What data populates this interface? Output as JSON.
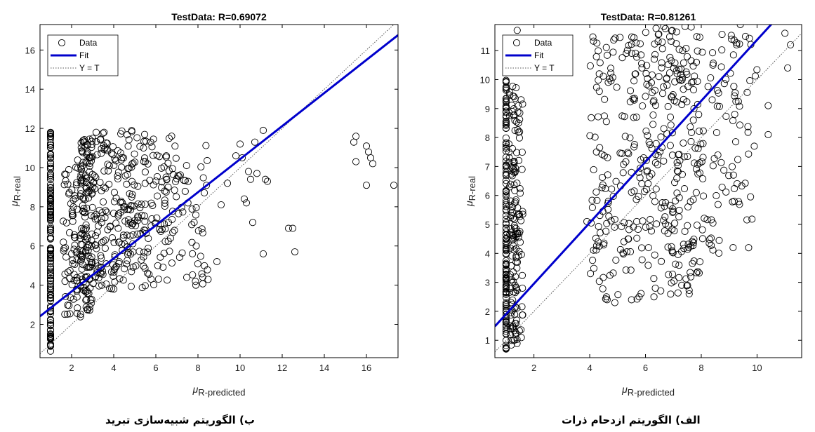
{
  "captions": {
    "left": "ب) الگوریتم شبیه‌سازی تبرید",
    "right": "الف) الگوریتم ازدحام ذرات"
  },
  "chart_data": [
    {
      "type": "scatter",
      "title": "TestData: R=0.69072",
      "xlabel_mu": "μ",
      "xlabel_sub": "R-predicted",
      "ylabel_mu": "μ",
      "ylabel_sub": "R-real",
      "xlim": [
        0.5,
        17.5
      ],
      "ylim": [
        0.3,
        17.3
      ],
      "xticks": [
        2,
        4,
        6,
        8,
        10,
        12,
        14,
        16
      ],
      "yticks": [
        2,
        4,
        6,
        8,
        10,
        12,
        14,
        16
      ],
      "legend": {
        "position": "top-left",
        "entries": [
          "Data",
          "Fit",
          "Y = T"
        ]
      },
      "fit": {
        "slope": 0.844,
        "intercept": 1.99,
        "color": "#0000cc"
      },
      "ident_line": true,
      "clusters": [
        {
          "x": [
            1.0,
            1.0
          ],
          "y": [
            0.6,
            11.8
          ],
          "n": 150
        },
        {
          "x": [
            1.6,
            2.3
          ],
          "y": [
            2.5,
            10.5
          ],
          "n": 70
        },
        {
          "x": [
            2.4,
            3.0
          ],
          "y": [
            2.3,
            11.5
          ],
          "n": 150
        },
        {
          "x": [
            3.0,
            5.5
          ],
          "y": [
            3.8,
            11.9
          ],
          "n": 220
        },
        {
          "x": [
            5.5,
            8.5
          ],
          "y": [
            4.0,
            11.9
          ],
          "n": 120
        }
      ],
      "points": [
        [
          9.1,
          8.1
        ],
        [
          9.4,
          9.2
        ],
        [
          9.8,
          10.6
        ],
        [
          10.0,
          11.2
        ],
        [
          10.1,
          10.5
        ],
        [
          10.2,
          8.4
        ],
        [
          10.3,
          8.2
        ],
        [
          10.4,
          9.8
        ],
        [
          10.5,
          9.4
        ],
        [
          10.6,
          7.2
        ],
        [
          10.7,
          11.3
        ],
        [
          10.8,
          9.7
        ],
        [
          11.1,
          11.9
        ],
        [
          11.2,
          9.4
        ],
        [
          11.3,
          9.3
        ],
        [
          11.1,
          5.6
        ],
        [
          12.3,
          6.9
        ],
        [
          12.5,
          6.9
        ],
        [
          12.6,
          5.7
        ],
        [
          15.4,
          11.3
        ],
        [
          15.5,
          10.3
        ],
        [
          15.5,
          11.6
        ],
        [
          16.0,
          11.1
        ],
        [
          16.1,
          10.8
        ],
        [
          16.2,
          10.5
        ],
        [
          16.3,
          10.2
        ],
        [
          16.0,
          9.1
        ],
        [
          17.3,
          9.1
        ],
        [
          8.9,
          5.2
        ],
        [
          7.9,
          4.0
        ]
      ]
    },
    {
      "type": "scatter",
      "title": "TestData: R=0.81261",
      "xlabel_mu": "μ",
      "xlabel_sub": "R-predicted",
      "ylabel_mu": "μ",
      "ylabel_sub": "R-real",
      "xlim": [
        0.6,
        11.6
      ],
      "ylim": [
        0.4,
        11.9
      ],
      "xticks": [
        2,
        4,
        6,
        8,
        10
      ],
      "yticks": [
        1,
        2,
        3,
        4,
        5,
        6,
        7,
        8,
        9,
        10,
        11
      ],
      "legend": {
        "position": "top-left",
        "entries": [
          "Data",
          "Fit",
          "Y = T"
        ]
      },
      "fit": {
        "slope": 1.052,
        "intercept": 0.85,
        "color": "#0000cc"
      },
      "ident_line": true,
      "clusters": [
        {
          "x": [
            1.0,
            1.0
          ],
          "y": [
            0.6,
            10.0
          ],
          "n": 140
        },
        {
          "x": [
            1.1,
            1.6
          ],
          "y": [
            0.8,
            9.8
          ],
          "n": 160
        },
        {
          "x": [
            4.0,
            6.0
          ],
          "y": [
            2.3,
            11.5
          ],
          "n": 160
        },
        {
          "x": [
            6.0,
            8.0
          ],
          "y": [
            2.5,
            11.9
          ],
          "n": 230
        },
        {
          "x": [
            8.0,
            10.0
          ],
          "y": [
            4.0,
            11.6
          ],
          "n": 90
        }
      ],
      "points": [
        [
          10.4,
          9.1
        ],
        [
          10.4,
          8.1
        ],
        [
          11.1,
          10.4
        ],
        [
          11.0,
          11.6
        ],
        [
          11.2,
          11.2
        ],
        [
          9.9,
          7.7
        ],
        [
          9.4,
          11.9
        ],
        [
          4.6,
          2.5
        ],
        [
          4.9,
          2.3
        ],
        [
          5.5,
          2.4
        ],
        [
          7.3,
          2.9
        ],
        [
          1.4,
          11.7
        ],
        [
          9.2,
          8.8
        ],
        [
          3.9,
          5.1
        ],
        [
          4.3,
          4.4
        ]
      ]
    }
  ]
}
